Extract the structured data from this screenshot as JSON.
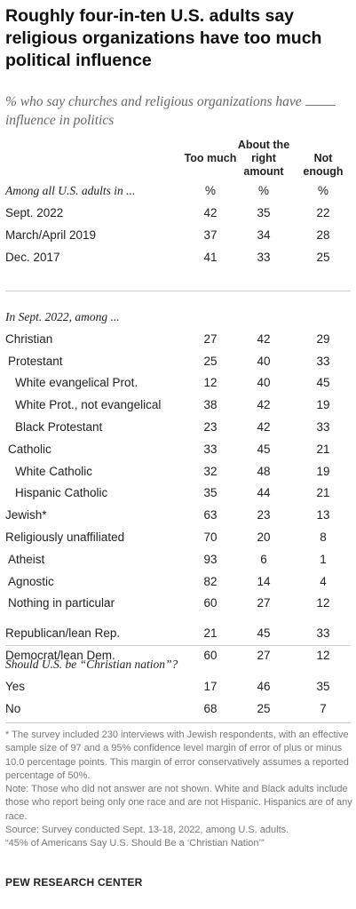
{
  "title": "Roughly four-in-ten U.S. adults say religious organizations have too much political influence",
  "subtitle_before": "% who say churches and religious organizations have",
  "subtitle_after": "influence in politics",
  "chart_data": {
    "type": "table",
    "columns": [
      "Too much",
      "About the right amount",
      "Not enough"
    ],
    "sections": [
      {
        "label": "Among all U.S. adults in ...",
        "unit_row": [
          "%",
          "%",
          "%"
        ],
        "rows": [
          {
            "label": "Sept. 2022",
            "indent": 0,
            "values": [
              42,
              35,
              22
            ]
          },
          {
            "label": "March/April 2019",
            "indent": 0,
            "values": [
              37,
              34,
              28
            ]
          },
          {
            "label": "Dec. 2017",
            "indent": 0,
            "values": [
              41,
              33,
              25
            ]
          }
        ]
      },
      {
        "label": "In Sept. 2022, among ...",
        "rows": [
          {
            "label": "Christian",
            "indent": 0,
            "values": [
              27,
              42,
              29
            ]
          },
          {
            "label": "Protestant",
            "indent": 1,
            "values": [
              25,
              40,
              33
            ]
          },
          {
            "label": "White evangelical Prot.",
            "indent": 2,
            "values": [
              12,
              40,
              45
            ]
          },
          {
            "label": "White Prot., not evangelical",
            "indent": 2,
            "values": [
              38,
              42,
              19
            ]
          },
          {
            "label": "Black Protestant",
            "indent": 2,
            "values": [
              23,
              42,
              33
            ]
          },
          {
            "label": "Catholic",
            "indent": 1,
            "values": [
              33,
              45,
              21
            ]
          },
          {
            "label": "White Catholic",
            "indent": 2,
            "values": [
              32,
              48,
              19
            ]
          },
          {
            "label": "Hispanic Catholic",
            "indent": 2,
            "values": [
              35,
              44,
              21
            ]
          },
          {
            "label": "Jewish*",
            "indent": 0,
            "values": [
              63,
              23,
              13
            ]
          },
          {
            "label": "Religiously unaffiliated",
            "indent": 0,
            "values": [
              70,
              20,
              8
            ]
          },
          {
            "label": "Atheist",
            "indent": 1,
            "values": [
              93,
              6,
              1
            ]
          },
          {
            "label": "Agnostic",
            "indent": 1,
            "values": [
              82,
              14,
              4
            ]
          },
          {
            "label": "Nothing in particular",
            "indent": 1,
            "values": [
              60,
              27,
              12
            ]
          },
          {
            "label": "Republican/lean Rep.",
            "indent": 0,
            "values": [
              21,
              45,
              33
            ],
            "gap_before": true
          },
          {
            "label": "Democrat/lean Dem.",
            "indent": 0,
            "values": [
              60,
              27,
              12
            ]
          }
        ]
      },
      {
        "label": "Should U.S. be “Christian nation”?",
        "rows": [
          {
            "label": "Yes",
            "indent": 0,
            "values": [
              17,
              46,
              35
            ]
          },
          {
            "label": "No",
            "indent": 0,
            "values": [
              68,
              25,
              7
            ]
          }
        ]
      }
    ]
  },
  "notes": [
    "* The survey included 230 interviews with Jewish respondents, with an effective sample size of 97 and a 95% confidence level margin of error of plus or minus 10.0 percentage points. This margin of error conservatively assumes a reported percentage of 50%.",
    "Note: Those who did not answer are not shown. White and Black adults include those who report being only one race and are not Hispanic. Hispanics are of any race.",
    "Source: Survey conducted Sept. 13-18, 2022, among U.S. adults.",
    "“45% of Americans Say U.S. Should Be a ‘Christian Nation’”"
  ],
  "brand": "PEW RESEARCH CENTER"
}
